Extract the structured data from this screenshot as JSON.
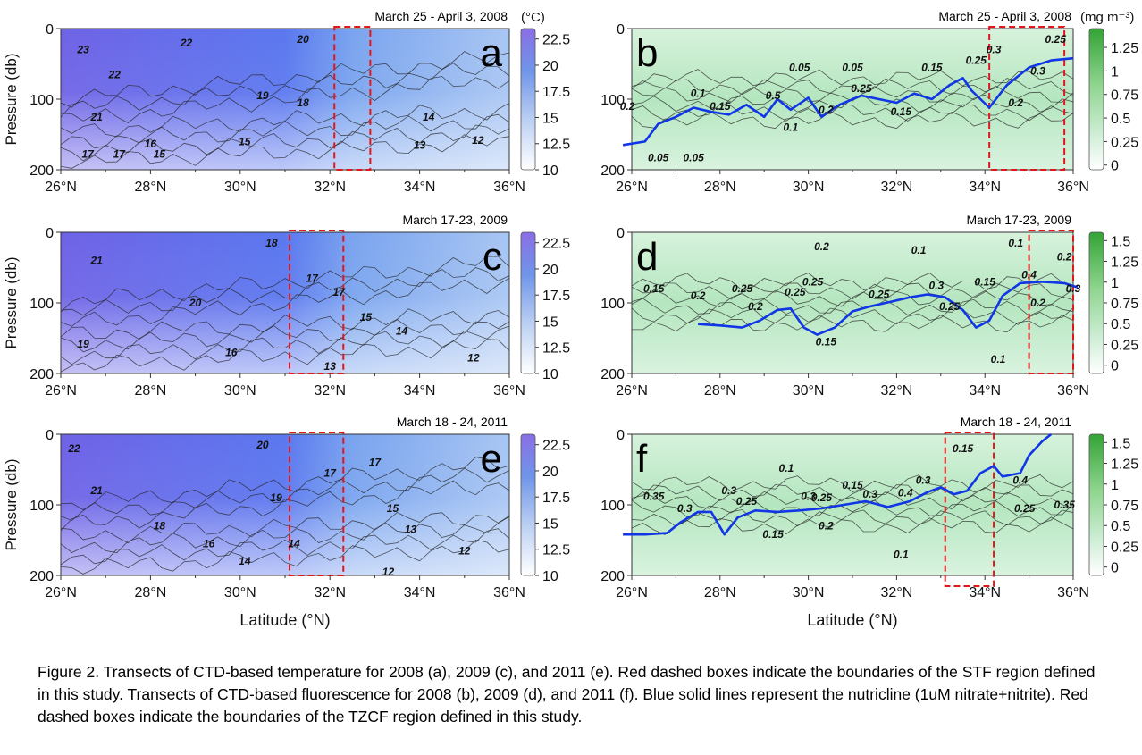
{
  "chart_data": [
    {
      "type": "heatmap",
      "panel_label": "a",
      "date": "March 25 - April 3, 2008",
      "variable": "temperature",
      "units": "(°C)",
      "ylabel": "Pressure (db)",
      "xlabel": "",
      "xlim": [
        26,
        36
      ],
      "ylim": [
        200,
        0
      ],
      "x_ticks": [
        "26°N",
        "28°N",
        "30°N",
        "32°N",
        "34°N",
        "36°N"
      ],
      "y_ticks": [
        "0",
        "100",
        "200"
      ],
      "colorbar_ticks": [
        "22.5",
        "20",
        "17.5",
        "15",
        "12.5",
        "10"
      ],
      "colorbar_range": [
        10,
        23.5
      ],
      "colors": [
        "#ffffff",
        "#6a5acd"
      ],
      "region_box": {
        "lat": [
          32.1,
          32.9
        ],
        "pressure": [
          0,
          200
        ]
      },
      "contour_labels": [
        {
          "text": "23",
          "lat": 26.5,
          "p": 30
        },
        {
          "text": "22",
          "lat": 27.2,
          "p": 65
        },
        {
          "text": "22",
          "lat": 28.8,
          "p": 20
        },
        {
          "text": "20",
          "lat": 31.4,
          "p": 15
        },
        {
          "text": "21",
          "lat": 26.8,
          "p": 125
        },
        {
          "text": "19",
          "lat": 30.5,
          "p": 95
        },
        {
          "text": "18",
          "lat": 31.4,
          "p": 105
        },
        {
          "text": "17",
          "lat": 26.6,
          "p": 178
        },
        {
          "text": "17",
          "lat": 27.3,
          "p": 178
        },
        {
          "text": "16",
          "lat": 28.0,
          "p": 163
        },
        {
          "text": "15",
          "lat": 28.2,
          "p": 178
        },
        {
          "text": "15",
          "lat": 30.1,
          "p": 160
        },
        {
          "text": "14",
          "lat": 34.2,
          "p": 125
        },
        {
          "text": "13",
          "lat": 34.0,
          "p": 165
        },
        {
          "text": "12",
          "lat": 35.3,
          "p": 158
        }
      ]
    },
    {
      "type": "heatmap",
      "panel_label": "b",
      "date": "March 25 - April 3, 2008",
      "variable": "fluorescence",
      "units": "(mg m⁻³)",
      "ylabel": "",
      "xlabel": "",
      "xlim": [
        26,
        36
      ],
      "ylim": [
        200,
        0
      ],
      "x_ticks": [
        "26°N",
        "28°N",
        "30°N",
        "32°N",
        "34°N",
        "36°N"
      ],
      "y_ticks": [
        "0",
        "100",
        "200"
      ],
      "colorbar_ticks": [
        "1.25",
        "1",
        "0.75",
        "0.5",
        "0.25",
        "0"
      ],
      "colorbar_range": [
        -0.05,
        1.45
      ],
      "colors": [
        "#ffffff",
        "#32a032"
      ],
      "region_box": {
        "lat": [
          34.1,
          35.8
        ],
        "pressure": [
          0,
          200
        ]
      },
      "nutricline": [
        [
          25.8,
          165
        ],
        [
          26.3,
          160
        ],
        [
          26.6,
          135
        ],
        [
          27.0,
          125
        ],
        [
          27.4,
          112
        ],
        [
          27.8,
          118
        ],
        [
          28.2,
          122
        ],
        [
          28.6,
          108
        ],
        [
          29.0,
          125
        ],
        [
          29.3,
          100
        ],
        [
          29.6,
          115
        ],
        [
          30.0,
          98
        ],
        [
          30.3,
          125
        ],
        [
          30.7,
          108
        ],
        [
          31.2,
          95
        ],
        [
          31.6,
          100
        ],
        [
          32.0,
          105
        ],
        [
          32.4,
          92
        ],
        [
          32.8,
          100
        ],
        [
          33.2,
          80
        ],
        [
          33.5,
          70
        ],
        [
          33.7,
          88
        ],
        [
          34.1,
          112
        ],
        [
          34.5,
          80
        ],
        [
          35.0,
          55
        ],
        [
          35.5,
          45
        ],
        [
          36.0,
          42
        ]
      ],
      "contour_labels": [
        {
          "text": "0.05",
          "lat": 29.8,
          "p": 55
        },
        {
          "text": "0.05",
          "lat": 31.0,
          "p": 55
        },
        {
          "text": "0.15",
          "lat": 32.8,
          "p": 55
        },
        {
          "text": "0.25",
          "lat": 33.8,
          "p": 45
        },
        {
          "text": "0.3",
          "lat": 34.2,
          "p": 30
        },
        {
          "text": "0.3",
          "lat": 35.2,
          "p": 60
        },
        {
          "text": "0.25",
          "lat": 35.6,
          "p": 15
        },
        {
          "text": "0.2",
          "lat": 34.7,
          "p": 105
        },
        {
          "text": "0.1",
          "lat": 27.5,
          "p": 92
        },
        {
          "text": "0.15",
          "lat": 28.0,
          "p": 110
        },
        {
          "text": "0.5",
          "lat": 29.2,
          "p": 95
        },
        {
          "text": "0.25",
          "lat": 31.2,
          "p": 85
        },
        {
          "text": "0.2",
          "lat": 30.4,
          "p": 115
        },
        {
          "text": "0.1",
          "lat": 29.6,
          "p": 140
        },
        {
          "text": "0.15",
          "lat": 32.1,
          "p": 118
        },
        {
          "text": "0.05",
          "lat": 26.6,
          "p": 183
        },
        {
          "text": "0.05",
          "lat": 27.4,
          "p": 183
        },
        {
          "text": "0.2",
          "lat": 25.9,
          "p": 110
        }
      ]
    },
    {
      "type": "heatmap",
      "panel_label": "c",
      "date": "March 17-23, 2009",
      "variable": "temperature",
      "units": "",
      "ylabel": "Pressure (db)",
      "xlabel": "",
      "xlim": [
        26,
        36
      ],
      "ylim": [
        200,
        0
      ],
      "x_ticks": [
        "26°N",
        "28°N",
        "30°N",
        "32°N",
        "34°N",
        "36°N"
      ],
      "y_ticks": [
        "0",
        "100",
        "200"
      ],
      "colorbar_ticks": [
        "22.5",
        "20",
        "17.5",
        "15",
        "12.5",
        "10"
      ],
      "colorbar_range": [
        10,
        23.5
      ],
      "colors": [
        "#ffffff",
        "#6a5acd"
      ],
      "region_box": {
        "lat": [
          31.1,
          32.3
        ],
        "pressure": [
          0,
          200
        ]
      },
      "contour_labels": [
        {
          "text": "21",
          "lat": 26.8,
          "p": 40
        },
        {
          "text": "20",
          "lat": 29.0,
          "p": 100
        },
        {
          "text": "18",
          "lat": 30.7,
          "p": 15
        },
        {
          "text": "17",
          "lat": 31.6,
          "p": 65
        },
        {
          "text": "17",
          "lat": 32.2,
          "p": 85
        },
        {
          "text": "19",
          "lat": 26.5,
          "p": 158
        },
        {
          "text": "16",
          "lat": 29.8,
          "p": 170
        },
        {
          "text": "15",
          "lat": 32.8,
          "p": 120
        },
        {
          "text": "14",
          "lat": 33.6,
          "p": 140
        },
        {
          "text": "13",
          "lat": 32.0,
          "p": 190
        },
        {
          "text": "12",
          "lat": 35.2,
          "p": 178
        }
      ]
    },
    {
      "type": "heatmap",
      "panel_label": "d",
      "date": "March 17-23, 2009",
      "variable": "fluorescence",
      "units": "",
      "ylabel": "",
      "xlabel": "",
      "xlim": [
        26,
        36
      ],
      "ylim": [
        200,
        0
      ],
      "x_ticks": [
        "26°N",
        "28°N",
        "30°N",
        "32°N",
        "34°N",
        "36°N"
      ],
      "y_ticks": [
        "0",
        "100",
        "200"
      ],
      "colorbar_ticks": [
        "1.5",
        "1.25",
        "1",
        "0.75",
        "0.5",
        "0.25",
        "0"
      ],
      "colorbar_range": [
        -0.1,
        1.6
      ],
      "colors": [
        "#ffffff",
        "#32a032"
      ],
      "region_box": {
        "lat": [
          35.0,
          36.0
        ],
        "pressure": [
          0,
          200
        ]
      },
      "nutricline": [
        [
          27.5,
          130
        ],
        [
          28.0,
          132
        ],
        [
          28.5,
          135
        ],
        [
          28.9,
          125
        ],
        [
          29.3,
          110
        ],
        [
          29.6,
          108
        ],
        [
          29.9,
          135
        ],
        [
          30.2,
          145
        ],
        [
          30.6,
          135
        ],
        [
          31.0,
          112
        ],
        [
          31.4,
          105
        ],
        [
          31.9,
          98
        ],
        [
          32.3,
          92
        ],
        [
          32.7,
          88
        ],
        [
          33.1,
          92
        ],
        [
          33.5,
          110
        ],
        [
          33.8,
          135
        ],
        [
          34.1,
          125
        ],
        [
          34.4,
          90
        ],
        [
          34.8,
          72
        ],
        [
          35.3,
          70
        ],
        [
          35.8,
          72
        ],
        [
          36.1,
          78
        ]
      ],
      "contour_labels": [
        {
          "text": "0.15",
          "lat": 26.5,
          "p": 80
        },
        {
          "text": "0.2",
          "lat": 27.5,
          "p": 90
        },
        {
          "text": "0.25",
          "lat": 28.5,
          "p": 80
        },
        {
          "text": "0.2",
          "lat": 28.8,
          "p": 105
        },
        {
          "text": "0.25",
          "lat": 29.7,
          "p": 85
        },
        {
          "text": "0.25",
          "lat": 30.1,
          "p": 70
        },
        {
          "text": "0.2",
          "lat": 30.3,
          "p": 20
        },
        {
          "text": "0.1",
          "lat": 32.5,
          "p": 25
        },
        {
          "text": "0.25",
          "lat": 31.6,
          "p": 88
        },
        {
          "text": "0.3",
          "lat": 32.9,
          "p": 75
        },
        {
          "text": "0.25",
          "lat": 33.2,
          "p": 105
        },
        {
          "text": "0.15",
          "lat": 34.0,
          "p": 70
        },
        {
          "text": "0.1",
          "lat": 34.7,
          "p": 15
        },
        {
          "text": "0.4",
          "lat": 35.0,
          "p": 60
        },
        {
          "text": "0.2",
          "lat": 35.8,
          "p": 35
        },
        {
          "text": "0.2",
          "lat": 35.2,
          "p": 100
        },
        {
          "text": "0.3",
          "lat": 36.0,
          "p": 80
        },
        {
          "text": "0.15",
          "lat": 30.4,
          "p": 155
        },
        {
          "text": "0.1",
          "lat": 34.3,
          "p": 180
        }
      ]
    },
    {
      "type": "heatmap",
      "panel_label": "e",
      "date": "March 18 - 24, 2011",
      "variable": "temperature",
      "units": "",
      "ylabel": "Pressure (db)",
      "xlabel": "Latitude (°N)",
      "xlim": [
        26,
        36
      ],
      "ylim": [
        200,
        0
      ],
      "x_ticks": [
        "26°N",
        "28°N",
        "30°N",
        "32°N",
        "34°N",
        "36°N"
      ],
      "y_ticks": [
        "0",
        "100",
        "200"
      ],
      "colorbar_ticks": [
        "22.5",
        "20",
        "17.5",
        "15",
        "12.5",
        "10"
      ],
      "colorbar_range": [
        10,
        23.5
      ],
      "colors": [
        "#ffffff",
        "#6a5acd"
      ],
      "region_box": {
        "lat": [
          31.1,
          32.3
        ],
        "pressure": [
          0,
          200
        ]
      },
      "contour_labels": [
        {
          "text": "22",
          "lat": 26.3,
          "p": 20
        },
        {
          "text": "20",
          "lat": 30.5,
          "p": 15
        },
        {
          "text": "21",
          "lat": 26.8,
          "p": 80
        },
        {
          "text": "19",
          "lat": 30.8,
          "p": 90
        },
        {
          "text": "18",
          "lat": 28.2,
          "p": 130
        },
        {
          "text": "16",
          "lat": 29.3,
          "p": 155
        },
        {
          "text": "14",
          "lat": 30.1,
          "p": 180
        },
        {
          "text": "14",
          "lat": 31.2,
          "p": 155
        },
        {
          "text": "17",
          "lat": 32.0,
          "p": 55
        },
        {
          "text": "17",
          "lat": 33.0,
          "p": 40
        },
        {
          "text": "15",
          "lat": 33.4,
          "p": 105
        },
        {
          "text": "13",
          "lat": 33.8,
          "p": 135
        },
        {
          "text": "12",
          "lat": 33.3,
          "p": 195
        },
        {
          "text": "12",
          "lat": 35.0,
          "p": 165
        }
      ]
    },
    {
      "type": "heatmap",
      "panel_label": "f",
      "date": "March 18 - 24, 2011",
      "variable": "fluorescence",
      "units": "",
      "ylabel": "",
      "xlabel": "Latitude (°N)",
      "xlim": [
        26,
        36
      ],
      "ylim": [
        200,
        0
      ],
      "x_ticks": [
        "26°N",
        "28°N",
        "30°N",
        "32°N",
        "34°N",
        "36°N"
      ],
      "y_ticks": [
        "0",
        "100",
        "200"
      ],
      "colorbar_ticks": [
        "1.5",
        "1.25",
        "1",
        "0.75",
        "0.5",
        "0.25",
        "0"
      ],
      "colorbar_range": [
        -0.1,
        1.6
      ],
      "colors": [
        "#ffffff",
        "#32a032"
      ],
      "region_box": {
        "lat": [
          33.1,
          34.2
        ],
        "pressure": [
          0,
          210
        ]
      },
      "nutricline": [
        [
          25.8,
          142
        ],
        [
          26.3,
          142
        ],
        [
          26.8,
          140
        ],
        [
          27.1,
          125
        ],
        [
          27.5,
          110
        ],
        [
          27.8,
          110
        ],
        [
          28.1,
          142
        ],
        [
          28.4,
          118
        ],
        [
          28.8,
          108
        ],
        [
          29.3,
          110
        ],
        [
          29.8,
          108
        ],
        [
          30.3,
          105
        ],
        [
          30.8,
          100
        ],
        [
          31.3,
          95
        ],
        [
          31.8,
          103
        ],
        [
          32.3,
          95
        ],
        [
          32.7,
          82
        ],
        [
          33.0,
          75
        ],
        [
          33.3,
          85
        ],
        [
          33.6,
          80
        ],
        [
          33.9,
          55
        ],
        [
          34.2,
          45
        ],
        [
          34.4,
          60
        ],
        [
          34.8,
          55
        ],
        [
          35.0,
          30
        ],
        [
          35.3,
          10
        ],
        [
          35.5,
          0
        ]
      ],
      "contour_labels": [
        {
          "text": "0.35",
          "lat": 26.5,
          "p": 88
        },
        {
          "text": "0.3",
          "lat": 27.2,
          "p": 105
        },
        {
          "text": "0.25",
          "lat": 28.6,
          "p": 95
        },
        {
          "text": "0.3",
          "lat": 28.2,
          "p": 80
        },
        {
          "text": "0.1",
          "lat": 29.5,
          "p": 48
        },
        {
          "text": "0.15",
          "lat": 29.2,
          "p": 142
        },
        {
          "text": "0.3",
          "lat": 30.0,
          "p": 88
        },
        {
          "text": "0.25",
          "lat": 30.3,
          "p": 90
        },
        {
          "text": "0.15",
          "lat": 31.0,
          "p": 72
        },
        {
          "text": "0.3",
          "lat": 31.4,
          "p": 85
        },
        {
          "text": "0.2",
          "lat": 30.4,
          "p": 130
        },
        {
          "text": "0.4",
          "lat": 32.2,
          "p": 83
        },
        {
          "text": "0.1",
          "lat": 32.1,
          "p": 170
        },
        {
          "text": "0.3",
          "lat": 32.6,
          "p": 65
        },
        {
          "text": "0.15",
          "lat": 33.5,
          "p": 20
        },
        {
          "text": "0.4",
          "lat": 34.8,
          "p": 65
        },
        {
          "text": "0.25",
          "lat": 34.9,
          "p": 105
        },
        {
          "text": "0.35",
          "lat": 35.8,
          "p": 100
        }
      ]
    }
  ],
  "caption": "Figure 2. Transects of CTD-based temperature for 2008 (a), 2009 (c), and 2011 (e). Red dashed boxes indicate the boundaries of the STF region defined in this study. Transects of CTD-based fluorescence for 2008 (b), 2009 (d), and 2011 (f).  Blue solid lines represent the nutricline (1uM nitrate+nitrite). Red dashed boxes indicate the boundaries of the TZCF region defined in this study."
}
